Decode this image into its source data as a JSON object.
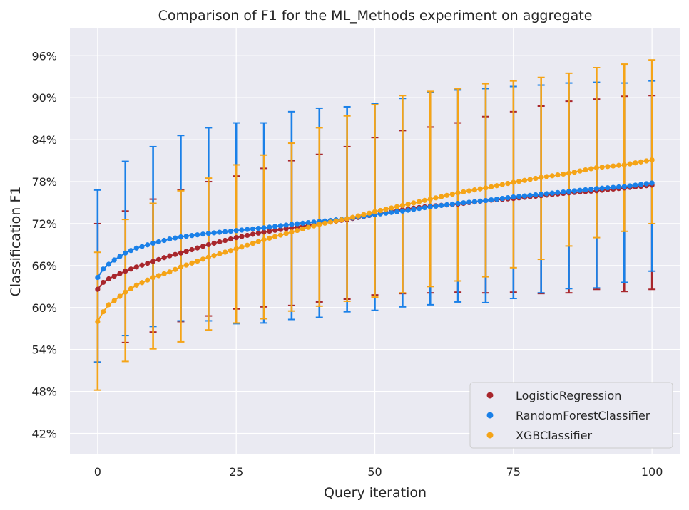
{
  "chart_data": {
    "type": "scatter",
    "title": "Comparison of F1 for the ML_Methods experiment on aggregate",
    "xlabel": "Query iteration",
    "ylabel": "Classification F1",
    "xlim": [
      -5,
      105
    ],
    "ylim": [
      0.39,
      0.999
    ],
    "xticks": [
      0,
      25,
      50,
      75,
      100
    ],
    "xtick_labels": [
      "0",
      "25",
      "50",
      "75",
      "100"
    ],
    "yticks": [
      0.42,
      0.48,
      0.54,
      0.6,
      0.66,
      0.72,
      0.78,
      0.84,
      0.9,
      0.96
    ],
    "ytick_labels": [
      "42%",
      "48%",
      "54%",
      "60%",
      "66%",
      "72%",
      "78%",
      "84%",
      "90%",
      "96%"
    ],
    "grid": true,
    "background": "#eaeaf2",
    "legend_position": "bottom-right",
    "errorbar_every": 5,
    "series": [
      {
        "name": "LogisticRegression",
        "color": "#a8262c",
        "mean_points": [
          [
            0,
            0.626
          ],
          [
            1,
            0.636
          ],
          [
            2,
            0.641
          ],
          [
            3,
            0.645
          ],
          [
            5,
            0.652
          ],
          [
            7,
            0.658
          ],
          [
            10,
            0.666
          ],
          [
            13,
            0.674
          ],
          [
            15,
            0.678
          ],
          [
            20,
            0.69
          ],
          [
            25,
            0.7
          ],
          [
            30,
            0.708
          ],
          [
            35,
            0.714
          ],
          [
            40,
            0.72
          ],
          [
            45,
            0.726
          ],
          [
            50,
            0.733
          ],
          [
            55,
            0.74
          ],
          [
            60,
            0.745
          ],
          [
            65,
            0.748
          ],
          [
            70,
            0.753
          ],
          [
            75,
            0.756
          ],
          [
            80,
            0.76
          ],
          [
            85,
            0.764
          ],
          [
            90,
            0.767
          ],
          [
            95,
            0.771
          ],
          [
            100,
            0.775
          ]
        ],
        "error_bars": [
          {
            "x": 0,
            "lo": 0.522,
            "hi": 0.72
          },
          {
            "x": 5,
            "lo": 0.55,
            "hi": 0.738
          },
          {
            "x": 10,
            "lo": 0.565,
            "hi": 0.755
          },
          {
            "x": 15,
            "lo": 0.58,
            "hi": 0.768
          },
          {
            "x": 20,
            "lo": 0.588,
            "hi": 0.78
          },
          {
            "x": 25,
            "lo": 0.598,
            "hi": 0.788
          },
          {
            "x": 30,
            "lo": 0.601,
            "hi": 0.799
          },
          {
            "x": 35,
            "lo": 0.603,
            "hi": 0.81
          },
          {
            "x": 40,
            "lo": 0.608,
            "hi": 0.819
          },
          {
            "x": 45,
            "lo": 0.612,
            "hi": 0.83
          },
          {
            "x": 50,
            "lo": 0.618,
            "hi": 0.843
          },
          {
            "x": 55,
            "lo": 0.62,
            "hi": 0.853
          },
          {
            "x": 60,
            "lo": 0.621,
            "hi": 0.858
          },
          {
            "x": 65,
            "lo": 0.622,
            "hi": 0.864
          },
          {
            "x": 70,
            "lo": 0.621,
            "hi": 0.873
          },
          {
            "x": 75,
            "lo": 0.622,
            "hi": 0.88
          },
          {
            "x": 80,
            "lo": 0.62,
            "hi": 0.888
          },
          {
            "x": 85,
            "lo": 0.621,
            "hi": 0.895
          },
          {
            "x": 90,
            "lo": 0.626,
            "hi": 0.898
          },
          {
            "x": 95,
            "lo": 0.623,
            "hi": 0.902
          },
          {
            "x": 100,
            "lo": 0.626,
            "hi": 0.903
          }
        ]
      },
      {
        "name": "RandomForestClassifier",
        "color": "#1a80e8",
        "mean_points": [
          [
            0,
            0.643
          ],
          [
            1,
            0.655
          ],
          [
            2,
            0.662
          ],
          [
            3,
            0.668
          ],
          [
            5,
            0.678
          ],
          [
            7,
            0.685
          ],
          [
            10,
            0.692
          ],
          [
            13,
            0.698
          ],
          [
            15,
            0.701
          ],
          [
            20,
            0.706
          ],
          [
            25,
            0.71
          ],
          [
            30,
            0.714
          ],
          [
            35,
            0.719
          ],
          [
            40,
            0.723
          ],
          [
            45,
            0.727
          ],
          [
            50,
            0.733
          ],
          [
            55,
            0.738
          ],
          [
            60,
            0.744
          ],
          [
            65,
            0.749
          ],
          [
            70,
            0.753
          ],
          [
            75,
            0.758
          ],
          [
            80,
            0.762
          ],
          [
            85,
            0.766
          ],
          [
            90,
            0.77
          ],
          [
            95,
            0.773
          ],
          [
            100,
            0.778
          ]
        ],
        "error_bars": [
          {
            "x": 0,
            "lo": 0.522,
            "hi": 0.768
          },
          {
            "x": 5,
            "lo": 0.56,
            "hi": 0.809
          },
          {
            "x": 10,
            "lo": 0.573,
            "hi": 0.83
          },
          {
            "x": 15,
            "lo": 0.581,
            "hi": 0.846
          },
          {
            "x": 20,
            "lo": 0.581,
            "hi": 0.857
          },
          {
            "x": 25,
            "lo": 0.577,
            "hi": 0.864
          },
          {
            "x": 30,
            "lo": 0.578,
            "hi": 0.864
          },
          {
            "x": 35,
            "lo": 0.583,
            "hi": 0.88
          },
          {
            "x": 40,
            "lo": 0.586,
            "hi": 0.885
          },
          {
            "x": 45,
            "lo": 0.594,
            "hi": 0.887
          },
          {
            "x": 50,
            "lo": 0.596,
            "hi": 0.892
          },
          {
            "x": 55,
            "lo": 0.601,
            "hi": 0.899
          },
          {
            "x": 60,
            "lo": 0.604,
            "hi": 0.908
          },
          {
            "x": 65,
            "lo": 0.608,
            "hi": 0.911
          },
          {
            "x": 70,
            "lo": 0.607,
            "hi": 0.913
          },
          {
            "x": 75,
            "lo": 0.613,
            "hi": 0.916
          },
          {
            "x": 80,
            "lo": 0.621,
            "hi": 0.918
          },
          {
            "x": 85,
            "lo": 0.627,
            "hi": 0.921
          },
          {
            "x": 90,
            "lo": 0.628,
            "hi": 0.922
          },
          {
            "x": 95,
            "lo": 0.636,
            "hi": 0.921
          },
          {
            "x": 100,
            "lo": 0.652,
            "hi": 0.924
          }
        ]
      },
      {
        "name": "XGBClassifier",
        "color": "#f5a417",
        "mean_points": [
          [
            0,
            0.58
          ],
          [
            1,
            0.594
          ],
          [
            2,
            0.604
          ],
          [
            3,
            0.61
          ],
          [
            5,
            0.622
          ],
          [
            7,
            0.632
          ],
          [
            10,
            0.643
          ],
          [
            13,
            0.651
          ],
          [
            15,
            0.658
          ],
          [
            20,
            0.672
          ],
          [
            25,
            0.684
          ],
          [
            30,
            0.697
          ],
          [
            35,
            0.708
          ],
          [
            40,
            0.719
          ],
          [
            45,
            0.727
          ],
          [
            50,
            0.737
          ],
          [
            55,
            0.746
          ],
          [
            60,
            0.755
          ],
          [
            65,
            0.764
          ],
          [
            70,
            0.771
          ],
          [
            75,
            0.779
          ],
          [
            80,
            0.786
          ],
          [
            85,
            0.792
          ],
          [
            90,
            0.8
          ],
          [
            95,
            0.804
          ],
          [
            100,
            0.811
          ]
        ],
        "error_bars": [
          {
            "x": 0,
            "lo": 0.482,
            "hi": 0.679
          },
          {
            "x": 5,
            "lo": 0.523,
            "hi": 0.726
          },
          {
            "x": 10,
            "lo": 0.541,
            "hi": 0.749
          },
          {
            "x": 15,
            "lo": 0.551,
            "hi": 0.767
          },
          {
            "x": 20,
            "lo": 0.568,
            "hi": 0.785
          },
          {
            "x": 25,
            "lo": 0.578,
            "hi": 0.804
          },
          {
            "x": 30,
            "lo": 0.584,
            "hi": 0.818
          },
          {
            "x": 35,
            "lo": 0.595,
            "hi": 0.835
          },
          {
            "x": 40,
            "lo": 0.602,
            "hi": 0.857
          },
          {
            "x": 45,
            "lo": 0.609,
            "hi": 0.874
          },
          {
            "x": 50,
            "lo": 0.615,
            "hi": 0.89
          },
          {
            "x": 55,
            "lo": 0.621,
            "hi": 0.903
          },
          {
            "x": 60,
            "lo": 0.63,
            "hi": 0.909
          },
          {
            "x": 65,
            "lo": 0.638,
            "hi": 0.913
          },
          {
            "x": 70,
            "lo": 0.644,
            "hi": 0.92
          },
          {
            "x": 75,
            "lo": 0.657,
            "hi": 0.924
          },
          {
            "x": 80,
            "lo": 0.669,
            "hi": 0.929
          },
          {
            "x": 85,
            "lo": 0.688,
            "hi": 0.935
          },
          {
            "x": 90,
            "lo": 0.7,
            "hi": 0.943
          },
          {
            "x": 95,
            "lo": 0.709,
            "hi": 0.948
          },
          {
            "x": 100,
            "lo": 0.72,
            "hi": 0.954
          }
        ]
      }
    ]
  }
}
